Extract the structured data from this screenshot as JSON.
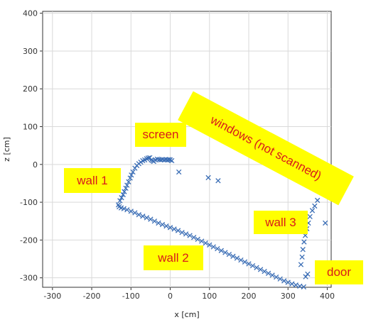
{
  "chart_data": {
    "type": "scatter",
    "xlabel": "x [cm]",
    "ylabel": "z [cm]",
    "xlim": [
      -325,
      410
    ],
    "ylim": [
      -325,
      405
    ],
    "xticks": [
      -300,
      -200,
      -100,
      0,
      100,
      200,
      300,
      400
    ],
    "yticks": [
      -300,
      -200,
      -100,
      0,
      100,
      200,
      300,
      400
    ],
    "grid": true,
    "marker": "x",
    "color": "#3a6db5",
    "series": [
      {
        "values": [
          [
            -132,
            -107
          ],
          [
            -128,
            -96
          ],
          [
            -124,
            -88
          ],
          [
            -120,
            -80
          ],
          [
            -117,
            -72
          ],
          [
            -113,
            -63
          ],
          [
            -110,
            -55
          ],
          [
            -106,
            -46
          ],
          [
            -102,
            -36
          ],
          [
            -99,
            -28
          ],
          [
            -95,
            -20
          ],
          [
            -90,
            -10
          ],
          [
            -85,
            -3
          ],
          [
            -80,
            2
          ],
          [
            -75,
            6
          ],
          [
            -70,
            10
          ],
          [
            -65,
            12
          ],
          [
            -60,
            15
          ],
          [
            -56,
            17
          ],
          [
            -52,
            18
          ],
          [
            -48,
            12
          ],
          [
            -45,
            10
          ],
          [
            -42,
            8
          ],
          [
            -38,
            12
          ],
          [
            -33,
            14
          ],
          [
            -28,
            13
          ],
          [
            -24,
            12
          ],
          [
            -20,
            13
          ],
          [
            -15,
            12
          ],
          [
            -11,
            13
          ],
          [
            -7,
            12
          ],
          [
            -3,
            13
          ],
          [
            0,
            12
          ],
          [
            4,
            10
          ],
          [
            -130,
            -112
          ],
          [
            -125,
            -115
          ],
          [
            -118,
            -117
          ],
          [
            -110,
            -120
          ],
          [
            -100,
            -124
          ],
          [
            -90,
            -128
          ],
          [
            -80,
            -133
          ],
          [
            -70,
            -137
          ],
          [
            -60,
            -141
          ],
          [
            -50,
            -145
          ],
          [
            -40,
            -150
          ],
          [
            -30,
            -155
          ],
          [
            -20,
            -159
          ],
          [
            -10,
            -163
          ],
          [
            0,
            -167
          ],
          [
            10,
            -171
          ],
          [
            20,
            -175
          ],
          [
            30,
            -180
          ],
          [
            40,
            -184
          ],
          [
            50,
            -188
          ],
          [
            60,
            -193
          ],
          [
            70,
            -198
          ],
          [
            80,
            -203
          ],
          [
            90,
            -208
          ],
          [
            100,
            -213
          ],
          [
            110,
            -218
          ],
          [
            120,
            -223
          ],
          [
            130,
            -228
          ],
          [
            140,
            -233
          ],
          [
            150,
            -238
          ],
          [
            160,
            -243
          ],
          [
            170,
            -248
          ],
          [
            180,
            -253
          ],
          [
            190,
            -258
          ],
          [
            200,
            -263
          ],
          [
            210,
            -268
          ],
          [
            220,
            -273
          ],
          [
            230,
            -278
          ],
          [
            240,
            -283
          ],
          [
            250,
            -288
          ],
          [
            260,
            -293
          ],
          [
            270,
            -298
          ],
          [
            280,
            -303
          ],
          [
            290,
            -308
          ],
          [
            300,
            -312
          ],
          [
            310,
            -316
          ],
          [
            320,
            -319
          ],
          [
            330,
            -322
          ],
          [
            340,
            -324
          ],
          [
            333,
            -265
          ],
          [
            336,
            -245
          ],
          [
            338,
            -225
          ],
          [
            341,
            -205
          ],
          [
            344,
            -188
          ],
          [
            348,
            -170
          ],
          [
            352,
            -155
          ],
          [
            356,
            -138
          ],
          [
            362,
            -122
          ],
          [
            368,
            -110
          ],
          [
            375,
            -95
          ],
          [
            395,
            -155
          ],
          [
            345,
            -297
          ],
          [
            350,
            -290
          ],
          [
            22,
            -20
          ],
          [
            97,
            -35
          ],
          [
            122,
            -43
          ]
        ]
      }
    ],
    "annotations": {
      "screen": "screen",
      "windows": "windows (not scanned)",
      "wall1": "wall 1",
      "wall2": "wall 2",
      "wall3": "wall 3",
      "door": "door"
    }
  }
}
